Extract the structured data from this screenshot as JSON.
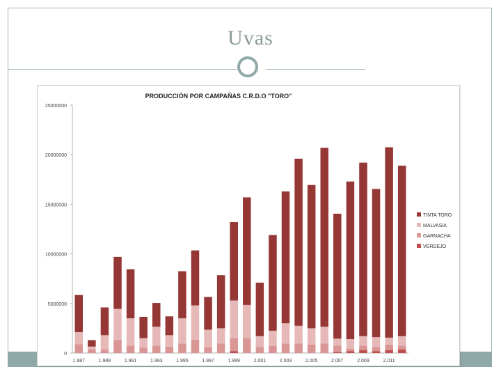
{
  "slide": {
    "title": "Uvas"
  },
  "colors": {
    "tinta_toro": "#953735",
    "malvasia": "#e6b9b8",
    "garnacha": "#d99694",
    "verdejo": "#c0504d",
    "axis": "#b0b0b0",
    "accent": "#8fa9a8"
  },
  "chart_data": {
    "type": "bar",
    "stacked": true,
    "title": "PRODUCCIÓN POR CAMPAÑAS C.R.D.O \"TORO\"",
    "xlabel": "",
    "ylabel": "",
    "ylim": [
      0,
      25000000
    ],
    "yticks": [
      0,
      5000000,
      10000000,
      15000000,
      20000000,
      25000000
    ],
    "ytick_labels": [
      "0",
      "5000000",
      "10000000",
      "15000000",
      "20000000",
      "25000000"
    ],
    "grid": false,
    "legend_position": "right",
    "categories": [
      "1.987",
      "1.988",
      "1.989",
      "1.990",
      "1.991",
      "1.992",
      "1.993",
      "1.994",
      "1.995",
      "1.996",
      "1.997",
      "1.998",
      "1.999",
      "2.000",
      "2.001",
      "2.002",
      "2.003",
      "2.004",
      "2.005",
      "2.006",
      "2.007",
      "2.008",
      "2.009",
      "2.010",
      "2.011",
      "2.012"
    ],
    "visible_category_labels": [
      "1.987",
      "1.989",
      "1.991",
      "1.993",
      "1.995",
      "1.997",
      "1.999",
      "2.001",
      "2.003",
      "2.005",
      "2.007",
      "2.009",
      "2.011"
    ],
    "series": [
      {
        "name": "VERDEJO",
        "values": [
          0,
          0,
          0,
          0,
          0,
          0,
          0,
          0,
          0,
          0,
          0,
          0,
          200000,
          0,
          0,
          0,
          0,
          0,
          0,
          0,
          100000,
          200000,
          300000,
          200000,
          300000,
          350000
        ]
      },
      {
        "name": "GARNACHA",
        "values": [
          900000,
          350000,
          350000,
          1300000,
          750000,
          550000,
          750000,
          650000,
          950000,
          1350000,
          600000,
          950000,
          1300000,
          1500000,
          600000,
          700000,
          950000,
          950000,
          850000,
          950000,
          650000,
          250000,
          450000,
          400000,
          550000,
          400000
        ]
      },
      {
        "name": "MALVASIA",
        "values": [
          1200000,
          300000,
          1450000,
          3150000,
          2750000,
          950000,
          1900000,
          1150000,
          2550000,
          3450000,
          1750000,
          1550000,
          3800000,
          3350000,
          1100000,
          1550000,
          2050000,
          1800000,
          1650000,
          1700000,
          700000,
          950000,
          950000,
          1000000,
          700000,
          950000
        ]
      },
      {
        "name": "TINTA TORO",
        "values": [
          3750000,
          650000,
          2800000,
          5250000,
          4950000,
          2150000,
          2400000,
          1900000,
          4750000,
          5550000,
          3300000,
          5350000,
          7900000,
          10850000,
          5400000,
          9650000,
          13300000,
          16850000,
          14450000,
          18050000,
          12600000,
          15900000,
          17500000,
          14950000,
          19200000,
          17200000
        ]
      }
    ],
    "legend_order": [
      "TINTA TORO",
      "MALVASIA",
      "GARNACHA",
      "VERDEJO"
    ]
  }
}
